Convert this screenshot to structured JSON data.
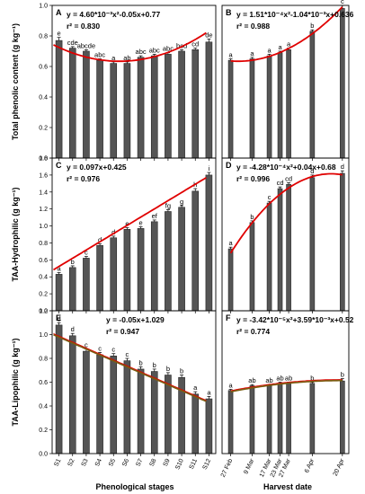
{
  "xtitle_left": "Phenological stages",
  "xtitle_right": "Harvest date",
  "chart_data": [
    {
      "panel": "A",
      "type": "bar",
      "ylabel": "Total phenolic content (g kg⁻¹)",
      "ylim": [
        0,
        1.0
      ],
      "yticks": [
        "0.0",
        "0.2",
        "0.4",
        "0.6",
        "0.8",
        "1.0"
      ],
      "categories": [
        "S1",
        "S2",
        "S3",
        "S4",
        "S5",
        "S6",
        "S7",
        "S8",
        "S9",
        "S10",
        "S11",
        "S12"
      ],
      "values": [
        0.77,
        0.72,
        0.7,
        0.64,
        0.62,
        0.62,
        0.66,
        0.67,
        0.68,
        0.7,
        0.71,
        0.76
      ],
      "errors": [
        0.02,
        0.01,
        0.01,
        0.01,
        0.01,
        0.01,
        0.01,
        0.01,
        0.01,
        0.01,
        0.01,
        0.02
      ],
      "letters": [
        "e",
        "cde",
        "abcde",
        "abc",
        "a",
        "ab",
        "abc",
        "abc",
        "abc",
        "bcd",
        "cd",
        "de"
      ],
      "equation": "y = 4.60*10⁻³x²-0.05x+0.77",
      "r2": "r² = 0.830",
      "fit": {
        "kind": "poly",
        "coef": [
          0.77,
          -0.05,
          0.0046
        ]
      }
    },
    {
      "panel": "B",
      "type": "bar",
      "ylim": [
        0,
        1.0
      ],
      "x": [
        0,
        10,
        18,
        23,
        27,
        38,
        52
      ],
      "values": [
        0.64,
        0.65,
        0.67,
        0.69,
        0.71,
        0.83,
        0.98
      ],
      "errors": [
        0.01,
        0.01,
        0.01,
        0.01,
        0.01,
        0.01,
        0.02
      ],
      "letters": [
        "a",
        "a",
        "a",
        "a",
        "a",
        "b",
        "c"
      ],
      "equation": "y = 1.51*10⁻⁴x²-1.04*10⁻³x+0.636",
      "r2": "r² = 0.988",
      "fit": {
        "kind": "poly",
        "coef": [
          0.636,
          -0.00104,
          0.000151
        ]
      }
    },
    {
      "panel": "C",
      "type": "bar",
      "ylabel": "TAA-Hydrophilic (g kg⁻¹)",
      "ylim": [
        0,
        1.8
      ],
      "yticks": [
        "0.0",
        "0.2",
        "0.4",
        "0.6",
        "0.8",
        "1.0",
        "1.2",
        "1.4",
        "1.6",
        "1.8"
      ],
      "categories": [
        "S1",
        "S2",
        "S3",
        "S4",
        "S5",
        "S6",
        "S7",
        "S8",
        "S9",
        "S10",
        "S11",
        "S12"
      ],
      "values": [
        0.43,
        0.51,
        0.62,
        0.77,
        0.86,
        0.96,
        0.97,
        1.05,
        1.17,
        1.22,
        1.41,
        1.6
      ],
      "errors": [
        0.02,
        0.02,
        0.02,
        0.02,
        0.02,
        0.02,
        0.02,
        0.02,
        0.02,
        0.02,
        0.03,
        0.03
      ],
      "letters": [
        "a",
        "b",
        "c",
        "d",
        "d",
        "e",
        "e",
        "ef",
        "fg",
        "g",
        "h",
        "i"
      ],
      "equation": "y = 0.097x+0.425",
      "r2": "r² = 0.976",
      "fit": {
        "kind": "poly",
        "coef": [
          0.425,
          0.097,
          0
        ]
      }
    },
    {
      "panel": "D",
      "type": "bar",
      "ylim": [
        0,
        1.8
      ],
      "x": [
        0,
        10,
        18,
        23,
        27,
        38,
        52
      ],
      "values": [
        0.73,
        1.04,
        1.27,
        1.44,
        1.49,
        1.57,
        1.62
      ],
      "errors": [
        0.02,
        0.02,
        0.02,
        0.02,
        0.02,
        0.03,
        0.03
      ],
      "letters": [
        "a",
        "b",
        "c",
        "cd",
        "cd",
        "d",
        "d"
      ],
      "equation": "y = -4.28*10⁻⁴x²+0.04x+0.68",
      "r2": "r² = 0.996",
      "fit": {
        "kind": "poly",
        "coef": [
          0.68,
          0.04,
          -0.000428
        ]
      }
    },
    {
      "panel": "E",
      "type": "bar",
      "ylabel": "TAA-Lipophilic (g kg⁻¹)",
      "ylim": [
        0,
        1.2
      ],
      "yticks": [
        "0.0",
        "0.2",
        "0.4",
        "0.6",
        "0.8",
        "1.0",
        "1.2"
      ],
      "categories": [
        "S1",
        "S2",
        "S3",
        "S4",
        "S5",
        "S6",
        "S7",
        "S8",
        "S9",
        "S10",
        "S11",
        "S12"
      ],
      "values": [
        1.08,
        0.99,
        0.86,
        0.83,
        0.82,
        0.78,
        0.71,
        0.69,
        0.66,
        0.64,
        0.5,
        0.46
      ],
      "errors": [
        0.02,
        0.02,
        0.02,
        0.02,
        0.02,
        0.02,
        0.02,
        0.02,
        0.02,
        0.02,
        0.02,
        0.02
      ],
      "letters": [
        "d",
        "d",
        "c",
        "c",
        "c",
        "c",
        "b",
        "b",
        "b",
        "b",
        "a",
        "a"
      ],
      "equation": "y = -0.05x+1.029",
      "r2": "r² = 0.947",
      "fit": {
        "kind": "poly",
        "coef": [
          1.029,
          -0.05,
          0
        ]
      }
    },
    {
      "panel": "F",
      "type": "bar",
      "ylim": [
        0,
        1.2
      ],
      "xlabel": "Harvest date",
      "x": [
        0,
        10,
        18,
        23,
        27,
        38,
        52
      ],
      "categories": [
        "27 Feb",
        "9 Mar",
        "17 Mar",
        "23 Mar",
        "27 Mar",
        "6 Apr",
        "20 Apr"
      ],
      "values": [
        0.53,
        0.57,
        0.57,
        0.59,
        0.59,
        0.59,
        0.61
      ],
      "errors": [
        0.01,
        0.01,
        0.01,
        0.01,
        0.01,
        0.01,
        0.02
      ],
      "letters": [
        "a",
        "ab",
        "ab",
        "ab",
        "ab",
        "b",
        "b"
      ],
      "equation": "y = -3.42*10⁻⁵x²+3.59*10⁻³x+0.52",
      "r2": "r² = 0.774",
      "fit": {
        "kind": "poly",
        "coef": [
          0.52,
          0.00359,
          -3.42e-05
        ]
      }
    }
  ]
}
